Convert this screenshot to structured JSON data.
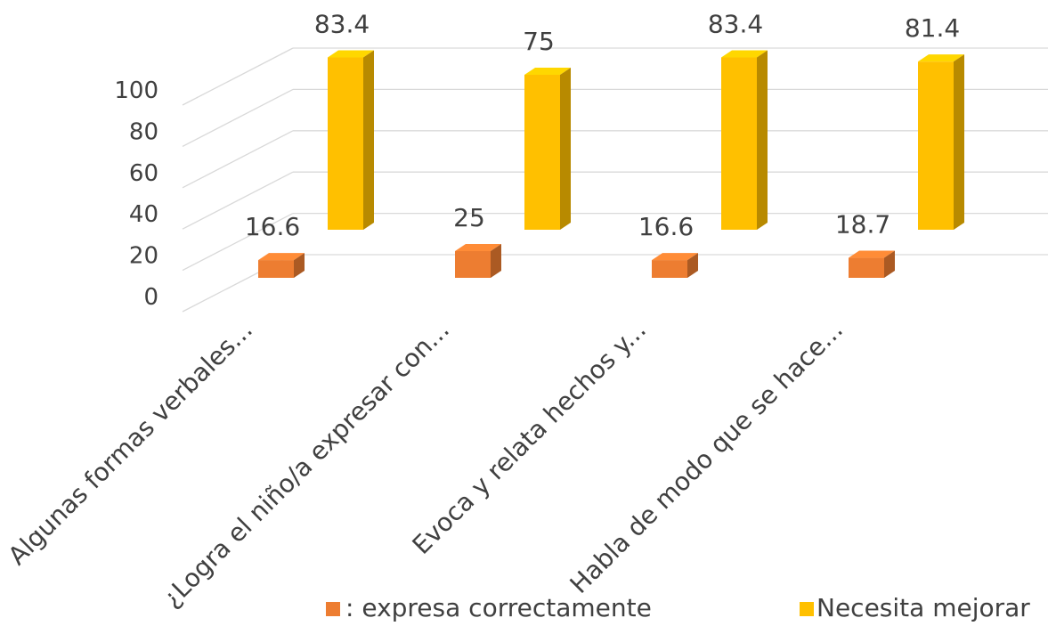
{
  "chart_data": {
    "type": "bar",
    "subtype": "3d-clustered-column",
    "categories": [
      "Algunas formas verbales...",
      "¿Logra el niño/a expresar con...",
      "Evoca y relata hechos y...",
      "Habla de modo que se hace..."
    ],
    "series": [
      {
        "name": ": expresa correctamente",
        "color": "#ED7D31",
        "values": [
          16.6,
          25,
          16.6,
          18.7
        ]
      },
      {
        "name": "Necesita mejorar",
        "color": "#FFC000",
        "values": [
          83.4,
          75,
          83.4,
          81.4
        ]
      }
    ],
    "yticks": [
      "0",
      "20",
      "40",
      "60",
      "80",
      "100"
    ],
    "ylim": [
      0,
      100
    ],
    "grid": true,
    "legend": "bottom",
    "data_labels": true
  }
}
